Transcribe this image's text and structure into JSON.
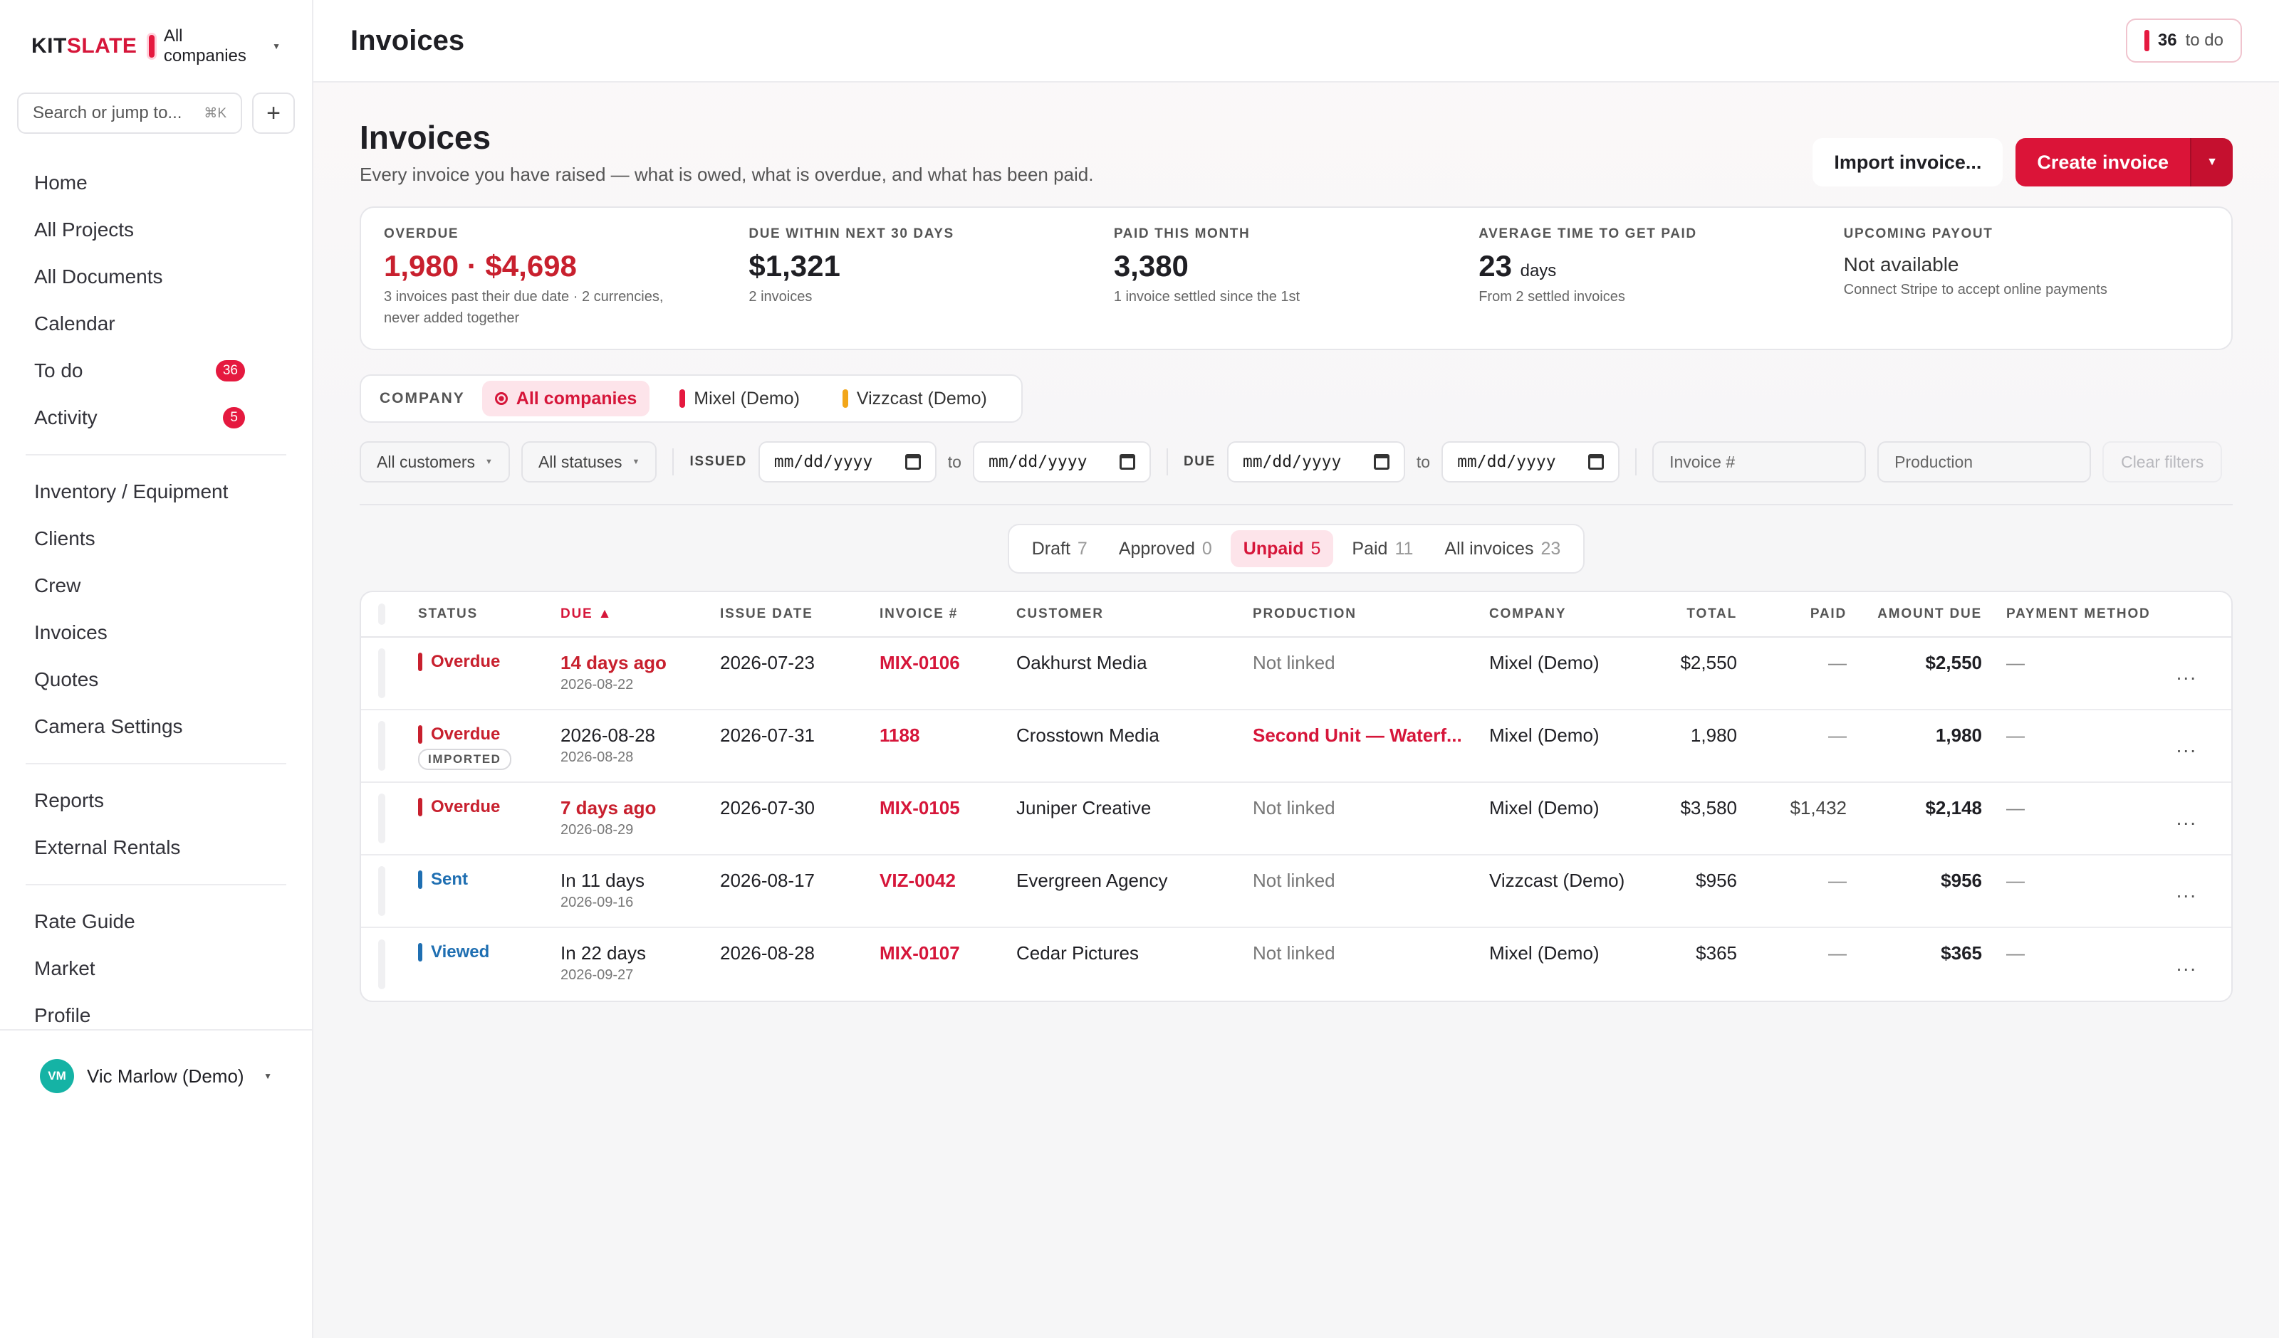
{
  "brand": {
    "name_prefix": "KIT",
    "name_suffix": "SLATE",
    "company": "All companies"
  },
  "search": {
    "placeholder": "Search or jump to...",
    "shortcut": "⌘K"
  },
  "nav": {
    "items": [
      {
        "label": "Home"
      },
      {
        "label": "All Projects"
      },
      {
        "label": "All Documents"
      },
      {
        "label": "Calendar"
      },
      {
        "label": "To do",
        "badge": "36"
      },
      {
        "label": "Activity",
        "badge": "5"
      }
    ],
    "group2": [
      {
        "label": "Inventory / Equipment"
      },
      {
        "label": "Clients"
      },
      {
        "label": "Crew"
      },
      {
        "label": "Invoices"
      },
      {
        "label": "Quotes"
      },
      {
        "label": "Camera Settings"
      }
    ],
    "group3": [
      {
        "label": "Reports"
      },
      {
        "label": "External Rentals"
      }
    ],
    "group4": [
      {
        "label": "Rate Guide"
      },
      {
        "label": "Market"
      },
      {
        "label": "Profile"
      }
    ]
  },
  "user": {
    "initials": "VM",
    "name": "Vic Marlow (Demo)"
  },
  "topbar": {
    "title": "Invoices",
    "todo_count": "36",
    "todo_label": "to do"
  },
  "page": {
    "title": "Invoices",
    "subtitle": "Every invoice you have raised — what is owed, what is overdue, and what has been paid.",
    "import_label": "Import invoice...",
    "create_label": "Create invoice"
  },
  "stats": [
    {
      "label": "OVERDUE",
      "value": "1,980 · $4,698",
      "note": "3 invoices past their due date · 2 currencies, never added together"
    },
    {
      "label": "DUE WITHIN NEXT 30 DAYS",
      "value": "$1,321",
      "note": "2 invoices"
    },
    {
      "label": "PAID THIS MONTH",
      "value": "3,380",
      "note": "1 invoice settled since the 1st"
    },
    {
      "label": "AVERAGE TIME TO GET PAID",
      "value": "23",
      "unit": "days",
      "note": "From 2 settled invoices"
    },
    {
      "label": "UPCOMING PAYOUT",
      "value": "Not available",
      "note": "Connect Stripe to accept online payments"
    }
  ],
  "company_filter": {
    "label": "COMPANY",
    "options": [
      {
        "label": "All companies"
      },
      {
        "label": "Mixel (Demo)",
        "color": "#e5193f"
      },
      {
        "label": "Vizzcast (Demo)",
        "color": "#f2a619"
      }
    ]
  },
  "filters": {
    "customers": "All customers",
    "statuses": "All statuses",
    "issued_label": "ISSUED",
    "due_label": "DUE",
    "date_placeholder": "mm/dd/yyyy",
    "to": "to",
    "invoice_placeholder": "Invoice #",
    "production_placeholder": "Production",
    "clear": "Clear filters"
  },
  "tabs": [
    {
      "label": "Draft",
      "count": "7"
    },
    {
      "label": "Approved",
      "count": "0"
    },
    {
      "label": "Unpaid",
      "count": "5"
    },
    {
      "label": "Paid",
      "count": "11"
    },
    {
      "label": "All invoices",
      "count": "23"
    }
  ],
  "table": {
    "headers": {
      "status": "STATUS",
      "due": "DUE ▲",
      "issue_date": "ISSUE DATE",
      "invoice": "INVOICE #",
      "customer": "CUSTOMER",
      "production": "PRODUCTION",
      "company": "COMPANY",
      "total": "TOTAL",
      "paid": "PAID",
      "amount_due": "AMOUNT DUE",
      "payment_method": "PAYMENT METHOD"
    },
    "rows": [
      {
        "status": "Overdue",
        "status_color": "#c8202e",
        "due": "14 days ago",
        "due_sub": "2026-08-22",
        "issue": "2026-07-23",
        "invoice": "MIX-0106",
        "customer": "Oakhurst Media",
        "production": "Not linked",
        "company": "Mixel (Demo)",
        "total": "$2,550",
        "paid": "—",
        "amount_due": "$2,550",
        "method": "—",
        "more": "..."
      },
      {
        "status": "Overdue",
        "status_color": "#c8202e",
        "tag": "IMPORTED",
        "due": "2026-08-28",
        "due_sub": "2026-08-28",
        "issue": "2026-07-31",
        "invoice": "1188",
        "customer": "Crosstown Media",
        "production": "Second Unit — Waterf...",
        "company": "Mixel (Demo)",
        "total": "1,980",
        "paid": "—",
        "amount_due": "1,980",
        "method": "—",
        "more": "..."
      },
      {
        "status": "Overdue",
        "status_color": "#c8202e",
        "due": "7 days ago",
        "due_sub": "2026-08-29",
        "issue": "2026-07-30",
        "invoice": "MIX-0105",
        "customer": "Juniper Creative",
        "production": "Not linked",
        "company": "Mixel (Demo)",
        "total": "$3,580",
        "paid": "$1,432",
        "amount_due": "$2,148",
        "method": "—",
        "more": "..."
      },
      {
        "status": "Sent",
        "status_color": "#1f6fb2",
        "due": "In 11 days",
        "due_sub": "2026-09-16",
        "issue": "2026-08-17",
        "invoice": "VIZ-0042",
        "customer": "Evergreen Agency",
        "production": "Not linked",
        "company": "Vizzcast (Demo)",
        "total": "$956",
        "paid": "—",
        "amount_due": "$956",
        "method": "—",
        "more": "..."
      },
      {
        "status": "Viewed",
        "status_color": "#1f6fb2",
        "due": "In 22 days",
        "due_sub": "2026-09-27",
        "issue": "2026-08-28",
        "invoice": "MIX-0107",
        "customer": "Cedar Pictures",
        "production": "Not linked",
        "company": "Mixel (Demo)",
        "total": "$365",
        "paid": "—",
        "amount_due": "$365",
        "method": "—",
        "more": "..."
      }
    ]
  }
}
